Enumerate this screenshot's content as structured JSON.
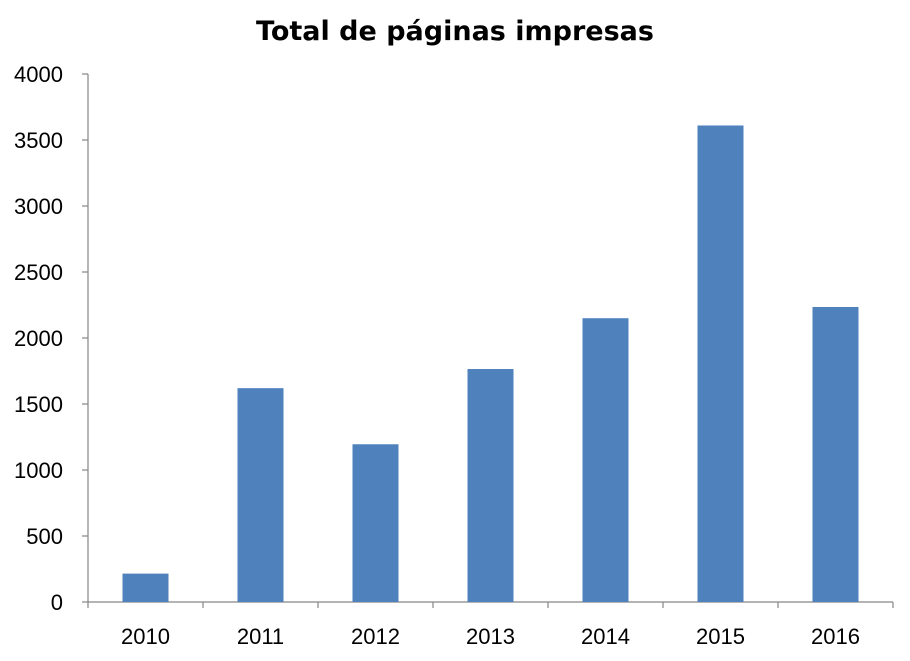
{
  "chart_data": {
    "type": "bar",
    "title": "Total de páginas impresas",
    "xlabel": "",
    "ylabel": "",
    "categories": [
      "2010",
      "2011",
      "2012",
      "2013",
      "2014",
      "2015",
      "2016"
    ],
    "values": [
      215,
      1620,
      1195,
      1765,
      2150,
      3610,
      2235
    ],
    "ylim": [
      0,
      4000
    ],
    "yticks": [
      0,
      500,
      1000,
      1500,
      2000,
      2500,
      3000,
      3500,
      4000
    ],
    "ytick_labels": [
      "0",
      "500",
      "1000",
      "1500",
      "2000",
      "2500",
      "3000",
      "3500",
      "4000"
    ],
    "grid": false,
    "legend": "none",
    "bar_color": "#4f81bd",
    "axis_color": "#868686"
  }
}
